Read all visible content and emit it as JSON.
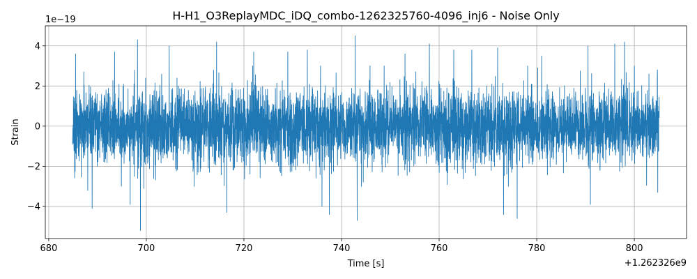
{
  "chart_data": {
    "type": "line",
    "title": "H-H1_O3ReplayMDC_iDQ_combo-1262325760-4096_inj6 - Noise Only",
    "xlabel": "Time [s]",
    "ylabel": "Strain",
    "x_offset_label": "+1.262326e9",
    "y_scale_label": "1e−19",
    "x_range": [
      684.9,
      805.1
    ],
    "xlim": [
      679.3,
      810.7
    ],
    "ylim": [
      -5.6,
      5.0
    ],
    "x_ticks": [
      680,
      700,
      720,
      740,
      760,
      780,
      800
    ],
    "x_tick_labels": [
      "680",
      "700",
      "720",
      "740",
      "760",
      "780",
      "800"
    ],
    "y_ticks": [
      -4,
      -2,
      0,
      2,
      4
    ],
    "y_tick_labels": [
      "−4",
      "−2",
      "0",
      "2",
      "4"
    ],
    "grid": true,
    "series": [
      {
        "color": "#1f77b4",
        "typical_envelope": 1.5,
        "peaks": [
          {
            "x": 685.5,
            "y": 3.6
          },
          {
            "x": 687.2,
            "y": 2.7
          },
          {
            "x": 688.0,
            "y": -3.2
          },
          {
            "x": 688.9,
            "y": -4.1
          },
          {
            "x": 693.5,
            "y": 3.7
          },
          {
            "x": 696.7,
            "y": -3.9
          },
          {
            "x": 698.2,
            "y": 4.3
          },
          {
            "x": 698.8,
            "y": -5.2
          },
          {
            "x": 699.5,
            "y": -3.1
          },
          {
            "x": 704.7,
            "y": 4.0
          },
          {
            "x": 714.4,
            "y": 4.2
          },
          {
            "x": 716.5,
            "y": -4.3
          },
          {
            "x": 722.0,
            "y": 3.7
          },
          {
            "x": 729.0,
            "y": 3.7
          },
          {
            "x": 733.0,
            "y": 3.8
          },
          {
            "x": 736.0,
            "y": -4.0
          },
          {
            "x": 737.5,
            "y": -4.4
          },
          {
            "x": 742.8,
            "y": 4.5
          },
          {
            "x": 743.2,
            "y": -4.7
          },
          {
            "x": 753.0,
            "y": 3.6
          },
          {
            "x": 758.0,
            "y": 4.1
          },
          {
            "x": 763.0,
            "y": 3.8
          },
          {
            "x": 766.7,
            "y": 3.8
          },
          {
            "x": 772.0,
            "y": 3.9
          },
          {
            "x": 773.2,
            "y": -4.4
          },
          {
            "x": 776.0,
            "y": -4.6
          },
          {
            "x": 781.0,
            "y": 3.5
          },
          {
            "x": 790.5,
            "y": 4.0
          },
          {
            "x": 791.0,
            "y": -3.9
          },
          {
            "x": 796.0,
            "y": 4.1
          },
          {
            "x": 798.0,
            "y": 4.2
          },
          {
            "x": 803.0,
            "y": 2.6
          },
          {
            "x": 804.7,
            "y": 2.5
          },
          {
            "x": 804.8,
            "y": -3.3
          }
        ]
      }
    ]
  }
}
